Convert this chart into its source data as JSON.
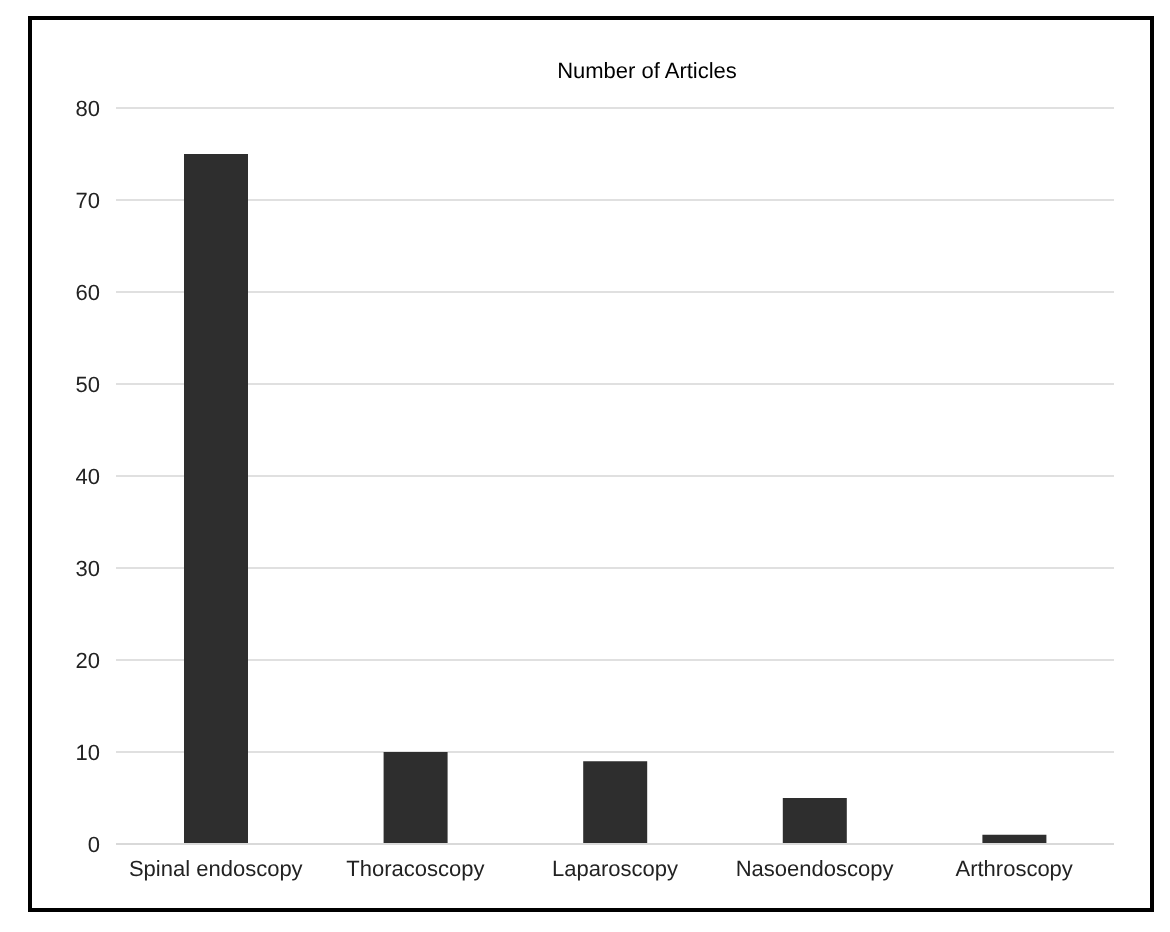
{
  "chart_data": {
    "type": "bar",
    "title": "Number of Articles",
    "categories": [
      "Spinal endoscopy",
      "Thoracoscopy",
      "Laparoscopy",
      "Nasoendoscopy",
      "Arthroscopy"
    ],
    "values": [
      75,
      10,
      9,
      5,
      1
    ],
    "color": "#2e2e2e",
    "ylim": [
      0,
      80
    ],
    "yticks": [
      0,
      10,
      20,
      30,
      40,
      50,
      60,
      70,
      80
    ],
    "grid": "y",
    "legend": false
  }
}
